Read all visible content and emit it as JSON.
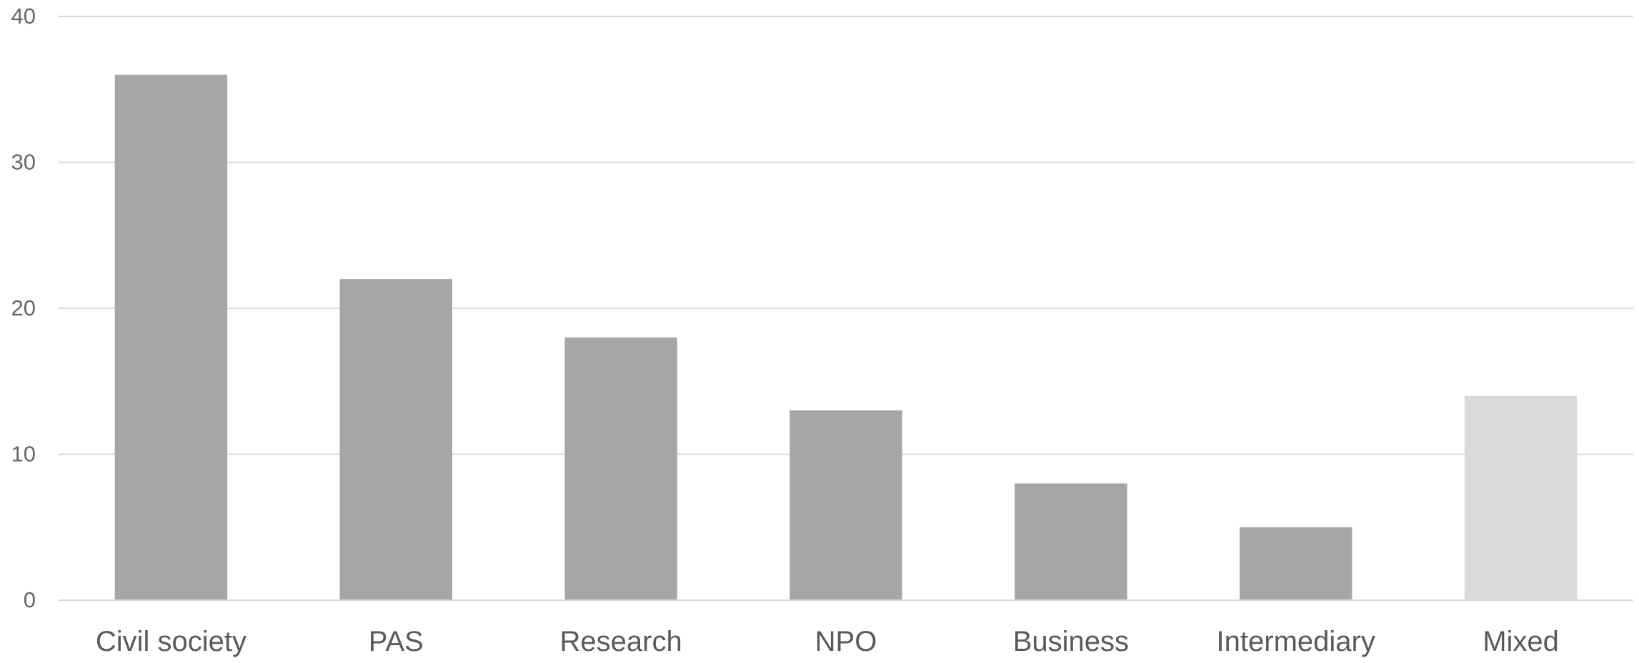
{
  "chart_data": {
    "type": "bar",
    "title": "",
    "xlabel": "",
    "ylabel": "",
    "categories": [
      "Civil society",
      "PAS",
      "Research",
      "NPO",
      "Business",
      "Intermediary",
      "Mixed"
    ],
    "values": [
      36,
      22,
      18,
      13,
      8,
      5,
      14
    ],
    "bar_colors": [
      "#a6a6a6",
      "#a6a6a6",
      "#a6a6a6",
      "#a6a6a6",
      "#a6a6a6",
      "#a6a6a6",
      "#d9d9d9"
    ],
    "ylim": [
      0,
      40
    ],
    "yticks": [
      0,
      10,
      20,
      30,
      40
    ],
    "grid": true,
    "gridline_color": "#d9d9d9",
    "legend": false
  }
}
